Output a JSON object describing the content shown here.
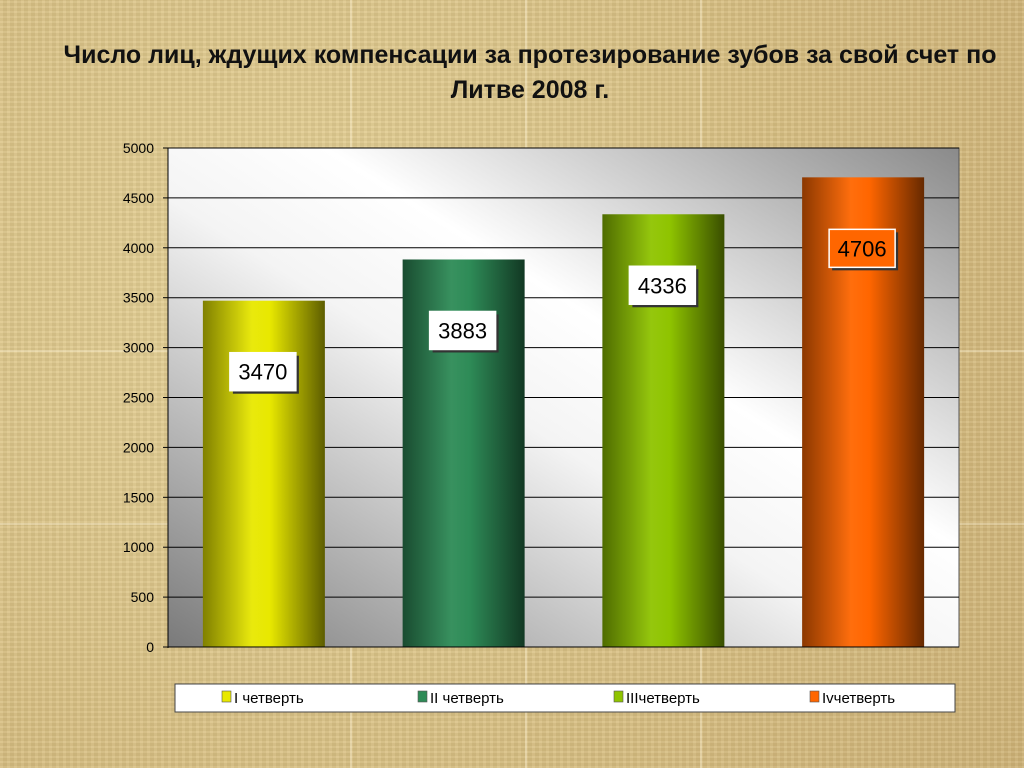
{
  "title": "Число лиц, ждущих компенсации за протезирование зубов за свой счет по Литве 2008 г.",
  "chart_data": {
    "type": "bar",
    "title": "Число лиц, ждущих компенсации за протезирование зубов за свой счет по Литве 2008 г.",
    "categories": [
      "I четверть",
      "II четверть",
      "IIIчетверть",
      "Ivчетверть"
    ],
    "values": [
      3470,
      3883,
      4336,
      4706
    ],
    "colors": [
      "#e8e800",
      "#2e8b57",
      "#8fc400",
      "#ff6600"
    ],
    "ylim": [
      0,
      5000
    ],
    "yticks": [
      0,
      500,
      1000,
      1500,
      2000,
      2500,
      3000,
      3500,
      4000,
      4500,
      5000
    ],
    "grid": true,
    "legend_position": "bottom",
    "data_labels": true
  }
}
